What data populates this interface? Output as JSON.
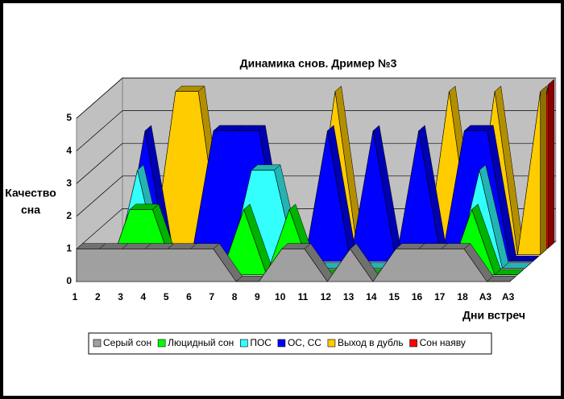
{
  "chart_data": {
    "type": "area3d",
    "title": "Динамика снов.  Дример №3",
    "y_label_lines": [
      "Качество",
      "сна"
    ],
    "x_label": "Дни встреч",
    "categories": [
      "1",
      "2",
      "3",
      "4",
      "5",
      "6",
      "7",
      "8",
      "9",
      "10",
      "11",
      "12",
      "13",
      "14",
      "15",
      "16",
      "17",
      "18",
      "А3",
      "А3"
    ],
    "ylim": [
      0,
      5
    ],
    "yticks": [
      0,
      1,
      2,
      3,
      4,
      5
    ],
    "grid": true,
    "series": [
      {
        "name": "Серый сон",
        "color": "#a0a0a0",
        "values": [
          1,
          1,
          1,
          1,
          1,
          1,
          1,
          0,
          0,
          1,
          1,
          0,
          1,
          0,
          1,
          1,
          1,
          1,
          0,
          0
        ]
      },
      {
        "name": "Люцидный сон",
        "color": "#00ff00",
        "values": [
          0,
          0,
          2,
          2,
          0,
          0,
          0,
          2,
          0,
          2,
          0,
          0,
          0,
          0,
          0,
          0,
          0,
          2,
          0,
          0
        ]
      },
      {
        "name": "ПОС",
        "color": "#33ffff",
        "values": [
          0,
          0,
          3,
          0,
          0,
          0,
          0,
          3,
          3,
          0,
          0,
          0,
          0,
          0,
          0,
          0,
          0,
          3,
          0,
          0
        ]
      },
      {
        "name": "ОС, СС",
        "color": "#0000ff",
        "values": [
          0,
          0,
          4,
          0,
          0,
          4,
          4,
          4,
          0,
          0,
          4,
          0,
          4,
          0,
          4,
          0,
          4,
          4,
          0,
          0
        ]
      },
      {
        "name": "Выход в дубль",
        "color": "#ffcc00",
        "values": [
          0,
          0,
          0,
          5,
          5,
          0,
          0,
          0,
          0,
          0,
          5,
          0,
          0,
          0,
          0,
          5,
          0,
          5,
          0,
          5
        ]
      },
      {
        "name": "Сон наяву",
        "color": "#ff0000",
        "values": [
          0,
          0,
          0,
          0,
          0,
          0,
          0,
          0,
          0,
          0,
          0,
          0,
          0,
          0,
          0,
          0,
          0,
          0,
          0,
          5
        ]
      }
    ]
  }
}
